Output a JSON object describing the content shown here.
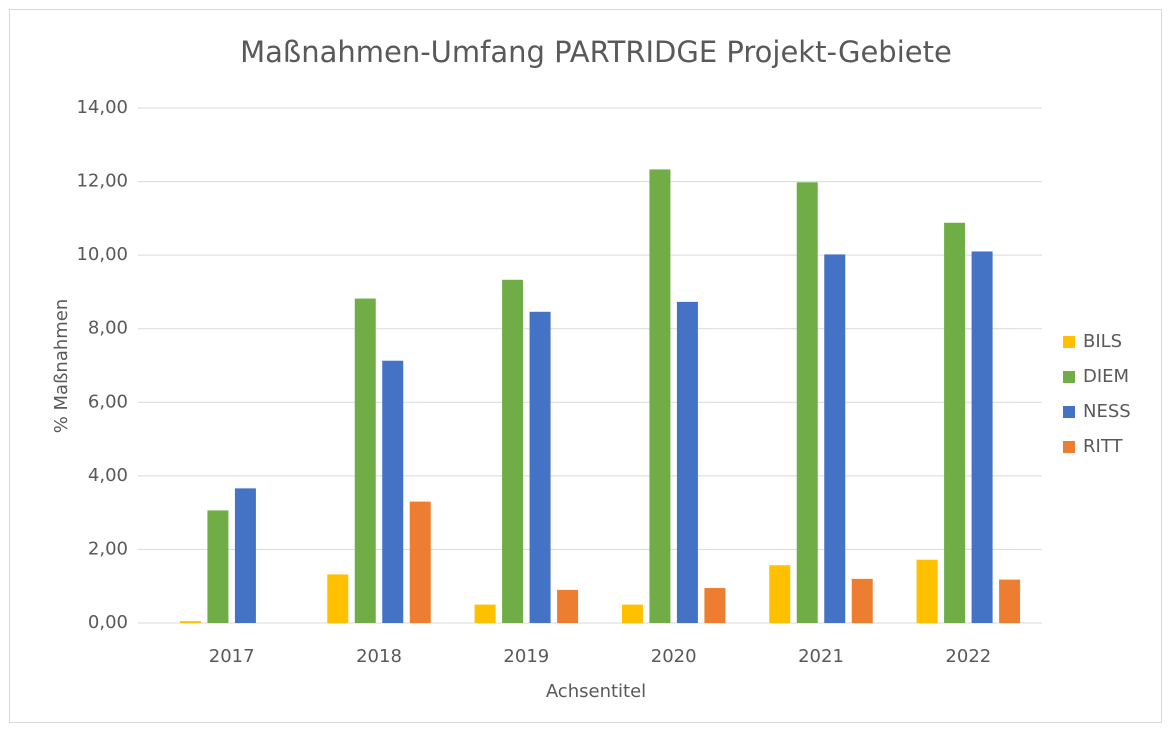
{
  "chart_data": {
    "type": "bar",
    "title": "Maßnahmen-Umfang PARTRIDGE Projekt-Gebiete",
    "x_label": "Achsentitel",
    "y_label": "% Maßnahmen",
    "categories": [
      "2017",
      "2018",
      "2019",
      "2020",
      "2021",
      "2022"
    ],
    "series": [
      {
        "name": "BILS",
        "color": "#ffc000",
        "values": [
          0.05,
          1.32,
          0.5,
          0.5,
          1.57,
          1.72
        ]
      },
      {
        "name": "DIEM",
        "color": "#70ad47",
        "values": [
          3.06,
          8.82,
          9.33,
          12.33,
          11.98,
          10.88
        ]
      },
      {
        "name": "NESS",
        "color": "#4472c4",
        "values": [
          3.66,
          7.13,
          8.46,
          8.73,
          10.02,
          10.1
        ]
      },
      {
        "name": "RITT",
        "color": "#ed7d31",
        "values": [
          null,
          3.3,
          0.9,
          0.95,
          1.2,
          1.18
        ]
      }
    ],
    "ylim": [
      0,
      14
    ],
    "yticks": [
      {
        "value": 0,
        "label": "0,00"
      },
      {
        "value": 2,
        "label": "2,00"
      },
      {
        "value": 4,
        "label": "4,00"
      },
      {
        "value": 6,
        "label": "6,00"
      },
      {
        "value": 8,
        "label": "8,00"
      },
      {
        "value": 10,
        "label": "10,00"
      },
      {
        "value": 12,
        "label": "12,00"
      },
      {
        "value": 14,
        "label": "14,00"
      }
    ],
    "grid": true,
    "legend": "right"
  }
}
